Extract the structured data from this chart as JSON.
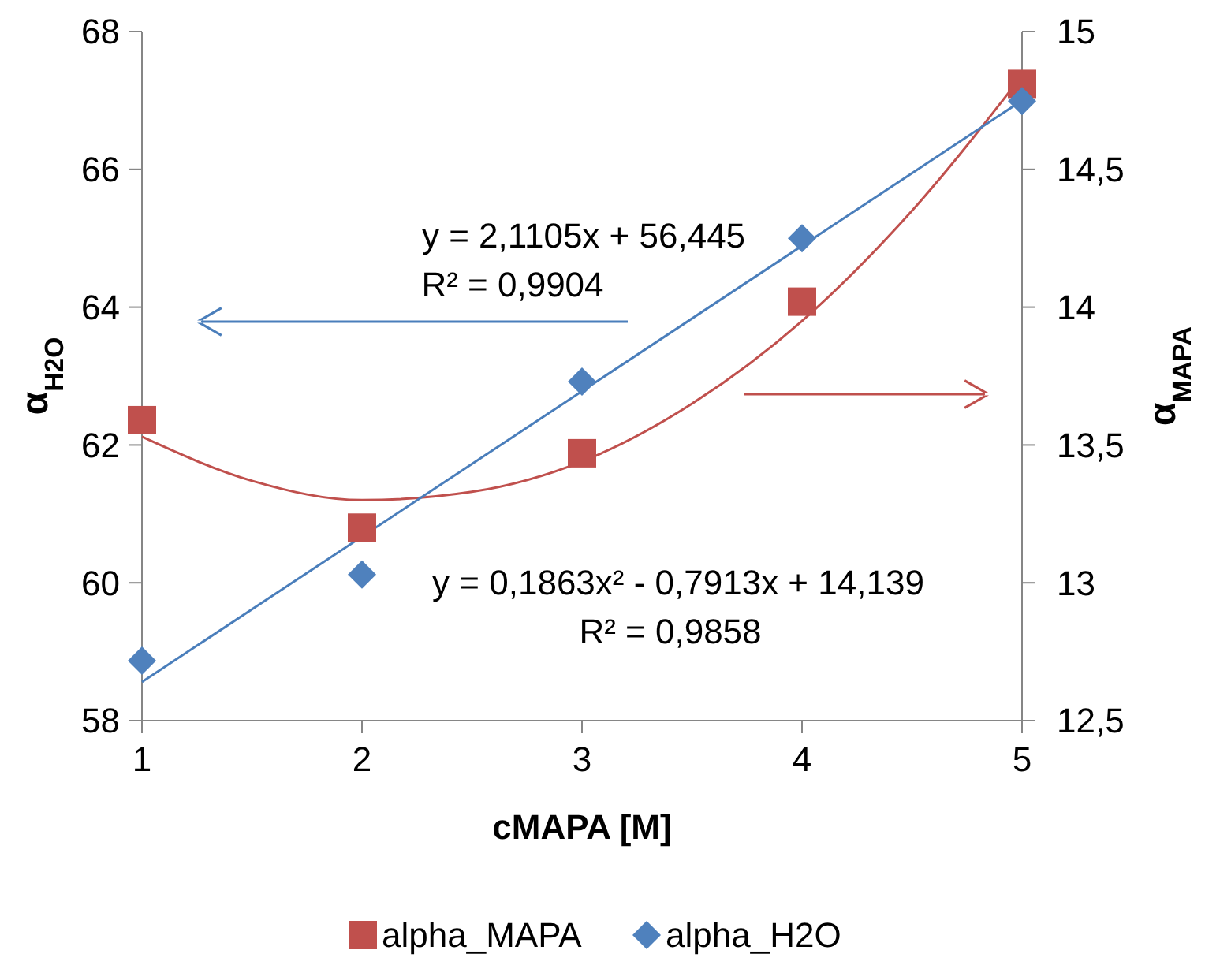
{
  "chart_data": {
    "type": "scatter",
    "xlabel": "cMAPA [M]",
    "ylabel": "α$_{H2O}$",
    "y2label": "α$_{MAPA}$",
    "xlim": [
      1,
      5
    ],
    "xticks": [
      1,
      2,
      3,
      4,
      5
    ],
    "ylim": [
      58,
      68
    ],
    "yticks": [
      58,
      60,
      62,
      64,
      66,
      68
    ],
    "y2lim": [
      12.5,
      15
    ],
    "y2ticks": [
      {
        "value": 12.5,
        "label": "12,5"
      },
      13,
      {
        "value": 13.5,
        "label": "13,5"
      },
      14,
      {
        "value": 14.5,
        "label": "14,5"
      },
      15
    ],
    "grid": false,
    "legend": "bottom",
    "series": [
      {
        "name": "alpha_MAPA",
        "axis": "y2",
        "marker": "square",
        "color": "#c0504d",
        "x": [
          1,
          2,
          3,
          4,
          5
        ],
        "values": [
          13.59,
          13.2,
          13.47,
          14.02,
          14.81
        ]
      },
      {
        "name": "alpha_H2O",
        "marker": "diamond",
        "color": "#4f81bd",
        "x": [
          1,
          2,
          3,
          4,
          5
        ],
        "values": [
          58.87,
          60.12,
          62.92,
          65,
          66.99
        ]
      },
      {
        "type": "line",
        "axis": "y2",
        "marker": "none",
        "color": "#c0504d",
        "x": [
          1,
          1.5,
          2,
          2.5,
          3,
          3.5,
          4,
          4.5,
          5
        ],
        "values": [
          13.53,
          13.37,
          13.3,
          13.33,
          13.44,
          13.65,
          13.95,
          14.35,
          14.84
        ]
      },
      {
        "type": "line",
        "marker": "none",
        "color": "#4a7ebb",
        "x": [
          1,
          5
        ],
        "values": [
          58.56,
          67
        ]
      }
    ],
    "annotations": [
      "y = 2,1105x + 56,445",
      "R² = 0,9904",
      "y = 0,1863x² - 0,7913x + 14,139",
      "R² = 0,9858"
    ]
  }
}
